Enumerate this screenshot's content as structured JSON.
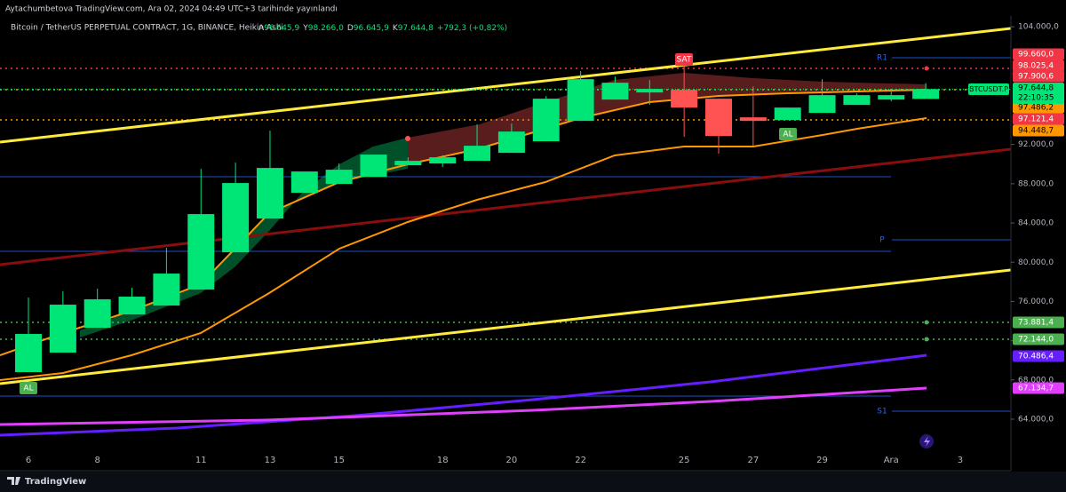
{
  "header": {
    "published": "Aytachumbetova TradingView.com, Ara 02, 2024 04:49 UTC+3 tarihinde yayınlandı",
    "symbol": "Bitcoin / TetherUS PERPETUAL CONTRACT, 1G, BINANCE, Heikin Ashi",
    "ohlc": [
      [
        "A",
        "96.645,9"
      ],
      [
        "Y",
        "98.266,0"
      ],
      [
        "D",
        "96.645,9"
      ],
      [
        "K",
        "97.644,8"
      ]
    ],
    "change": "+792,3 (+0,82%)"
  },
  "footer": {
    "brand": "TradingView"
  },
  "chart_data": {
    "type": "candlestick",
    "categories": [
      "6",
      null,
      "8",
      null,
      null,
      "11",
      null,
      "13",
      null,
      "15",
      null,
      null,
      "18",
      null,
      "20",
      null,
      "22",
      null,
      null,
      "25",
      null,
      "27",
      null,
      "29",
      null,
      "Ara",
      null,
      "3"
    ],
    "open": [
      68796,
      70787,
      73321,
      74679,
      75584,
      77213,
      81014,
      84452,
      87077,
      87982,
      88706,
      89882,
      90063,
      90335,
      91149,
      92326,
      94407,
      96579,
      97303,
      97575,
      96670,
      94769,
      94498,
      95222,
      96036,
      96579,
      96645.9,
      null
    ],
    "high": [
      76398,
      77032,
      77303,
      77394,
      81466,
      89520,
      90154,
      93412,
      89249,
      90063,
      90968,
      90697,
      90900,
      94045,
      94136,
      96941,
      99475,
      98932,
      98570,
      100199,
      96670,
      97937,
      95765,
      98661,
      97213,
      97665,
      98266.0,
      null
    ],
    "low": [
      68796,
      70787,
      73321,
      74679,
      75584,
      77213,
      81014,
      84452,
      87077,
      87982,
      88706,
      89882,
      89700,
      90335,
      91149,
      92326,
      94407,
      96579,
      96036,
      92778,
      91059,
      91873,
      94498,
      95222,
      96036,
      96398,
      96645.9,
      null
    ],
    "close": [
      72688,
      75674,
      76217,
      76489,
      78842,
      84905,
      88072,
      89611,
      89249,
      89430,
      90968,
      90335,
      90697,
      91873,
      93321,
      96670,
      98661,
      98299,
      97665,
      95765,
      92869,
      94407,
      95765,
      97032,
      97032,
      97032,
      97644.8,
      null
    ],
    "up_color": "#00e676",
    "down_color": "#ff5252",
    "ylim": [
      58750,
      105100
    ],
    "yticks": [
      {
        "value": 64000,
        "label": "64.000,0"
      },
      {
        "value": 68000,
        "label": "68.000,0"
      },
      {
        "value": 72000,
        "label": "72.000,0"
      },
      {
        "value": 76000,
        "label": "76.000,0"
      },
      {
        "value": 80000,
        "label": "80.000,0"
      },
      {
        "value": 84000,
        "label": "84.000,0"
      },
      {
        "value": 88000,
        "label": "88.000,0"
      },
      {
        "value": 92000,
        "label": "92.000,0"
      },
      {
        "value": 104000,
        "label": "104.000,0"
      }
    ],
    "price_labels": [
      {
        "value": 99660.0,
        "label": "99.660,0",
        "color": "#f23645"
      },
      {
        "value": 98025.4,
        "label": "98.025,4",
        "color": "#f23645"
      },
      {
        "value": 97900.6,
        "label": "97.900,6",
        "color": "#f23645"
      },
      {
        "value": 97486.2,
        "label": "97.486,2",
        "color": "#ff9800"
      },
      {
        "value": 97121.4,
        "label": "97.121,4",
        "color": "#f23645"
      },
      {
        "value": 94448.7,
        "label": "94.448,7",
        "color": "#ff9800"
      },
      {
        "value": 73881.4,
        "label": "73.881,4",
        "color": "#4caf50"
      },
      {
        "value": 72144.0,
        "label": "72.144,0",
        "color": "#4caf50"
      },
      {
        "value": 70486.4,
        "label": "70.486,4",
        "color": "#651fff"
      },
      {
        "value": 67134.7,
        "label": "67.134,7",
        "color": "#e040fb"
      }
    ],
    "last_price": {
      "symbol": "BTCUSDT.P",
      "value": 97644.8,
      "label": "97.644,8",
      "countdown": "22:10:35"
    },
    "annotations": {
      "sell": "SAT",
      "buy": "AL",
      "pivots": [
        "R1",
        "P",
        "S1"
      ]
    }
  }
}
